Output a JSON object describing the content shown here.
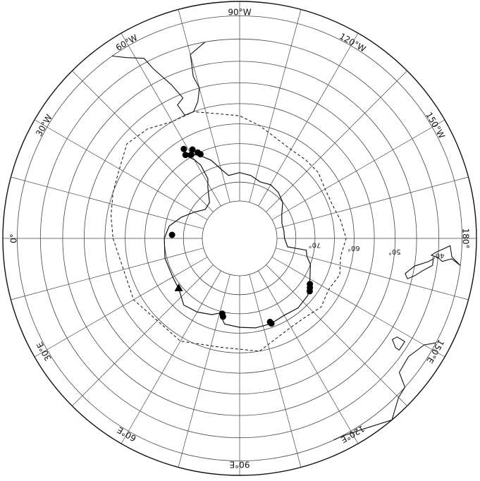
{
  "map": {
    "projection": "south-polar-stereographic",
    "colors": {
      "ink": "#111111",
      "grid": "#444444",
      "coast": "#111111",
      "front": "#222222",
      "marker": "#000000"
    },
    "latitudes_deg": [
      -80,
      -75,
      -70,
      -65,
      -60,
      -55,
      -50,
      -45,
      -40,
      -35
    ],
    "meridian_step_deg": 15,
    "lon_labels": [
      {
        "text": "0°",
        "lon": 0
      },
      {
        "text": "30°E",
        "lon": 30
      },
      {
        "text": "60°E",
        "lon": 60
      },
      {
        "text": "90°E",
        "lon": 90
      },
      {
        "text": "120°E",
        "lon": 120
      },
      {
        "text": "150°E",
        "lon": 150
      },
      {
        "text": "180°",
        "lon": 180
      },
      {
        "text": "150°W",
        "lon": -150
      },
      {
        "text": "120°W",
        "lon": -120
      },
      {
        "text": "90°W",
        "lon": -90
      },
      {
        "text": "60°W",
        "lon": -60
      },
      {
        "text": "30°W",
        "lon": -30
      }
    ],
    "lat_labels": [
      {
        "text": "70°",
        "lat": -70,
        "lon": 175
      },
      {
        "text": "60°",
        "lon": 175,
        "lat": -60
      },
      {
        "text": "50°",
        "lon": 175,
        "lat": -50
      },
      {
        "text": "40°",
        "lon": 175,
        "lat": -40
      }
    ],
    "antarctic_coast": [
      [
        0,
        -70
      ],
      [
        15,
        -69.5
      ],
      [
        30,
        -69.5
      ],
      [
        40,
        -69
      ],
      [
        50,
        -67
      ],
      [
        60,
        -67.5
      ],
      [
        70,
        -68.5
      ],
      [
        75,
        -69.5
      ],
      [
        80,
        -67
      ],
      [
        90,
        -66.5
      ],
      [
        100,
        -66
      ],
      [
        110,
        -66
      ],
      [
        120,
        -66.5
      ],
      [
        130,
        -66
      ],
      [
        140,
        -66.5
      ],
      [
        150,
        -68.5
      ],
      [
        160,
        -70
      ],
      [
        165,
        -71.5
      ],
      [
        170,
        -72
      ],
      [
        170,
        -77
      ],
      [
        180,
        -78
      ],
      [
        -170,
        -78
      ],
      [
        -160,
        -78
      ],
      [
        -150,
        -77
      ],
      [
        -140,
        -75
      ],
      [
        -130,
        -74
      ],
      [
        -120,
        -73.5
      ],
      [
        -110,
        -74
      ],
      [
        -100,
        -73
      ],
      [
        -90,
        -72.5
      ],
      [
        -80,
        -73
      ],
      [
        -75,
        -71
      ],
      [
        -70,
        -68
      ],
      [
        -65,
        -66
      ],
      [
        -58,
        -63.5
      ],
      [
        -57,
        -64
      ],
      [
        -60,
        -66
      ],
      [
        -62,
        -68
      ],
      [
        -62,
        -72
      ],
      [
        -58,
        -74
      ],
      [
        -50,
        -77.5
      ],
      [
        -40,
        -78
      ],
      [
        -30,
        -76
      ],
      [
        -20,
        -73.5
      ],
      [
        -10,
        -71
      ],
      [
        0,
        -70
      ]
    ],
    "south_america_coast": [
      [
        -80,
        -40
      ],
      [
        -75,
        -42
      ],
      [
        -74,
        -47
      ],
      [
        -75,
        -50
      ],
      [
        -73,
        -53
      ],
      [
        -70,
        -55
      ],
      [
        -66,
        -55
      ],
      [
        -65,
        -52
      ],
      [
        -68,
        -51
      ],
      [
        -66,
        -47
      ],
      [
        -63,
        -42
      ],
      [
        -62,
        -39
      ],
      [
        -58,
        -37
      ],
      [
        -55,
        -35
      ]
    ],
    "australia_coast": [
      [
        115,
        -35
      ],
      [
        117,
        -35
      ],
      [
        123,
        -34
      ],
      [
        130,
        -32
      ],
      [
        135,
        -34.5
      ],
      [
        138,
        -35
      ],
      [
        140,
        -38
      ],
      [
        145,
        -38.5
      ],
      [
        150,
        -37
      ],
      [
        152,
        -35
      ]
    ],
    "tasmania_coast": [
      [
        145,
        -41
      ],
      [
        148,
        -41
      ],
      [
        148,
        -43
      ],
      [
        146.5,
        -43.6
      ],
      [
        145,
        -42
      ],
      [
        145,
        -41
      ]
    ],
    "new_zealand_south": [
      [
        166.5,
        -46
      ],
      [
        168,
        -46.8
      ],
      [
        171,
        -45
      ],
      [
        173,
        -42
      ],
      [
        174,
        -41
      ],
      [
        172,
        -41
      ],
      [
        170,
        -43
      ],
      [
        168,
        -44.5
      ],
      [
        166.5,
        -46
      ]
    ],
    "new_zealand_north": [
      [
        173,
        -35
      ],
      [
        175,
        -37
      ],
      [
        178,
        -37.5
      ],
      [
        177,
        -39
      ],
      [
        176,
        -40.5
      ],
      [
        175,
        -41.5
      ],
      [
        174.5,
        -40
      ],
      [
        173.5,
        -39
      ],
      [
        174.5,
        -37
      ],
      [
        173,
        -35
      ]
    ],
    "ice_front": [
      [
        0,
        -57
      ],
      [
        30,
        -58
      ],
      [
        60,
        -59
      ],
      [
        80,
        -61
      ],
      [
        100,
        -60
      ],
      [
        110,
        -62
      ],
      [
        120,
        -63
      ],
      [
        130,
        -63
      ],
      [
        140,
        -62
      ],
      [
        150,
        -63
      ],
      [
        160,
        -62
      ],
      [
        170,
        -63
      ],
      [
        180,
        -62
      ],
      [
        -170,
        -63
      ],
      [
        -160,
        -64
      ],
      [
        -150,
        -64
      ],
      [
        -140,
        -63
      ],
      [
        -130,
        -63
      ],
      [
        -120,
        -63
      ],
      [
        -110,
        -62
      ],
      [
        -100,
        -60
      ],
      [
        -90,
        -58
      ],
      [
        -80,
        -57
      ],
      [
        -70,
        -55
      ],
      [
        -60,
        -55
      ],
      [
        -50,
        -53
      ],
      [
        -40,
        -52
      ],
      [
        -30,
        -54
      ],
      [
        -20,
        -55
      ],
      [
        -10,
        -56
      ],
      [
        0,
        -57
      ]
    ],
    "markers": [
      {
        "lon": 77,
        "lat": -69.5,
        "shape": "dot"
      },
      {
        "lon": 78,
        "lat": -68.8,
        "shape": "dot"
      },
      {
        "lon": 110,
        "lat": -66.5,
        "shape": "dot"
      },
      {
        "lon": 110.5,
        "lat": -66,
        "shape": "dot"
      },
      {
        "lon": 143,
        "lat": -66.8,
        "shape": "dot"
      },
      {
        "lon": 145,
        "lat": -67.3,
        "shape": "dot"
      },
      {
        "lon": 147,
        "lat": -67.8,
        "shape": "dot"
      },
      {
        "lon": -3,
        "lat": -72,
        "shape": "dot"
      },
      {
        "lon": -62,
        "lat": -63.5,
        "shape": "dot"
      },
      {
        "lon": -60,
        "lat": -64.5,
        "shape": "dot"
      },
      {
        "lon": -64,
        "lat": -64.8,
        "shape": "dot"
      },
      {
        "lon": -58,
        "lat": -62.3,
        "shape": "dot"
      },
      {
        "lon": -57,
        "lat": -63.8,
        "shape": "dot"
      },
      {
        "lon": -65,
        "lat": -65.5,
        "shape": "dot"
      },
      {
        "lon": 39,
        "lat": -69.2,
        "shape": "triangle"
      }
    ]
  }
}
